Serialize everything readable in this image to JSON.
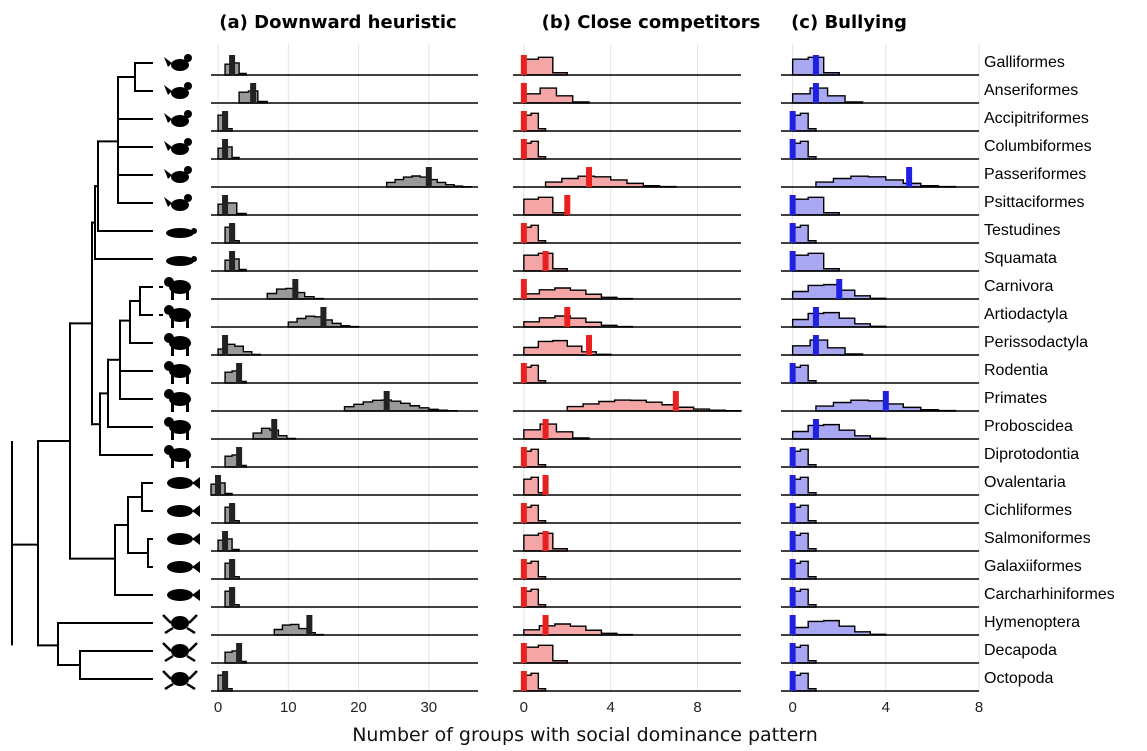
{
  "chart_data": {
    "type": "histogram-ridgeline",
    "xlabel": "Number of groups with social dominance pattern",
    "orders": [
      "Galliformes",
      "Anseriformes",
      "Accipitriformes",
      "Columbiformes",
      "Passeriformes",
      "Psittaciformes",
      "Testudines",
      "Squamata",
      "Carnivora",
      "Artiodactyla",
      "Perissodactyla",
      "Rodentia",
      "Primates",
      "Proboscidea",
      "Diprotodontia",
      "Ovalentaria",
      "Cichliformes",
      "Salmoniformes",
      "Galaxiiformes",
      "Carcharhiniformes",
      "Hymenoptera",
      "Decapoda",
      "Octopoda"
    ],
    "panels": [
      {
        "title": "(a) Downward heuristic",
        "xlim": [
          -1,
          37
        ],
        "xticks": [
          0,
          10,
          20,
          30
        ],
        "fill": "#999999",
        "marker_color": "#222222",
        "observed": [
          2,
          5,
          1,
          1,
          30,
          1,
          2,
          2,
          11,
          15,
          1,
          3,
          24,
          8,
          3,
          0,
          2,
          1,
          2,
          2,
          13,
          3,
          1
        ],
        "dist_range": [
          [
            1,
            4
          ],
          [
            3,
            7
          ],
          [
            0,
            2
          ],
          [
            0,
            3
          ],
          [
            24,
            36
          ],
          [
            0,
            4
          ],
          [
            1,
            3
          ],
          [
            1,
            4
          ],
          [
            7,
            15
          ],
          [
            10,
            20
          ],
          [
            0,
            6
          ],
          [
            1,
            4
          ],
          [
            18,
            34
          ],
          [
            5,
            11
          ],
          [
            1,
            4
          ],
          [
            -1,
            2
          ],
          [
            1,
            3
          ],
          [
            0,
            3
          ],
          [
            1,
            3
          ],
          [
            1,
            3
          ],
          [
            8,
            15
          ],
          [
            1,
            4
          ],
          [
            0,
            2
          ]
        ]
      },
      {
        "title": "(b) Close competitors",
        "xlim": [
          -0.5,
          10
        ],
        "xticks": [
          0,
          4,
          8
        ],
        "fill": "#f4a6a6",
        "marker_color": "#e82020",
        "observed": [
          0,
          0,
          0,
          0,
          3,
          2,
          0,
          1,
          0,
          2,
          3,
          0,
          7,
          1,
          0,
          1,
          0,
          1,
          0,
          0,
          1,
          0,
          0
        ],
        "dist_range": [
          [
            0,
            2
          ],
          [
            0,
            3
          ],
          [
            0,
            1
          ],
          [
            0,
            1
          ],
          [
            1,
            7
          ],
          [
            0,
            2
          ],
          [
            0,
            1
          ],
          [
            0,
            2
          ],
          [
            0,
            5
          ],
          [
            0,
            5
          ],
          [
            0,
            4
          ],
          [
            0,
            1
          ],
          [
            2,
            10
          ],
          [
            0,
            3
          ],
          [
            0,
            1
          ],
          [
            0,
            1
          ],
          [
            0,
            1
          ],
          [
            0,
            2
          ],
          [
            0,
            1
          ],
          [
            0,
            1
          ],
          [
            0,
            5
          ],
          [
            0,
            2
          ],
          [
            0,
            1
          ]
        ]
      },
      {
        "title": "(c) Bullying",
        "xlim": [
          -0.5,
          8
        ],
        "xticks": [
          0,
          4,
          8
        ],
        "fill": "#a7a7f2",
        "marker_color": "#2020e0",
        "observed": [
          1,
          1,
          0,
          0,
          5,
          0,
          0,
          0,
          2,
          1,
          1,
          0,
          4,
          1,
          0,
          0,
          0,
          0,
          0,
          0,
          0,
          0,
          0
        ],
        "dist_range": [
          [
            0,
            2
          ],
          [
            0,
            3
          ],
          [
            0,
            1
          ],
          [
            0,
            1
          ],
          [
            1,
            7
          ],
          [
            0,
            2
          ],
          [
            0,
            1
          ],
          [
            0,
            2
          ],
          [
            0,
            4
          ],
          [
            0,
            4
          ],
          [
            0,
            3
          ],
          [
            0,
            1
          ],
          [
            1,
            7
          ],
          [
            0,
            4
          ],
          [
            0,
            1
          ],
          [
            0,
            1
          ],
          [
            0,
            1
          ],
          [
            0,
            1
          ],
          [
            0,
            1
          ],
          [
            0,
            1
          ],
          [
            0,
            4
          ],
          [
            0,
            1
          ],
          [
            0,
            1
          ]
        ]
      }
    ]
  }
}
